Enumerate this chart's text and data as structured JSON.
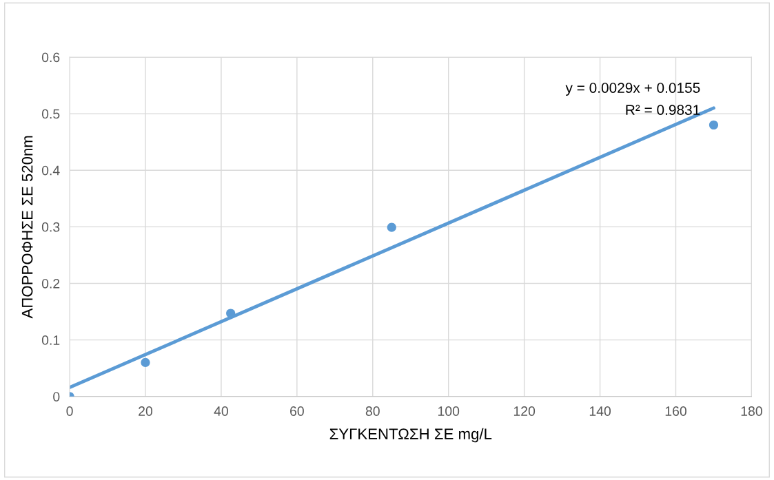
{
  "chart_data": {
    "type": "scatter",
    "xlabel": "ΣΥΓΚΕΝΤΩΣΗ ΣΕ mg/L",
    "ylabel": "ΑΠΟΡΡΟΦΗΣΕ ΣΕ 520nm",
    "series": [
      {
        "color": "#5b9bd5",
        "x": [
          0,
          20,
          42.5,
          85,
          170
        ],
        "values": [
          0,
          0.06,
          0.147,
          0.299,
          0.48
        ],
        "marker": "circle"
      },
      {
        "type": "line",
        "color": "#5b9bd5",
        "x": [
          0,
          170
        ],
        "values": [
          0.016,
          0.51
        ],
        "marker": "none"
      }
    ],
    "annotations": [
      "y = 0.0029x + 0.0155",
      "R² = 0.9831"
    ],
    "xlim": [
      0,
      180
    ],
    "xticks": [
      0,
      20,
      40,
      60,
      80,
      100,
      120,
      140,
      160,
      180
    ],
    "ylim": [
      0,
      0.6
    ],
    "yticks": [
      0,
      0.1,
      0.2,
      0.3,
      0.4,
      0.5,
      0.6
    ],
    "grid": true,
    "line_style": "solid"
  }
}
